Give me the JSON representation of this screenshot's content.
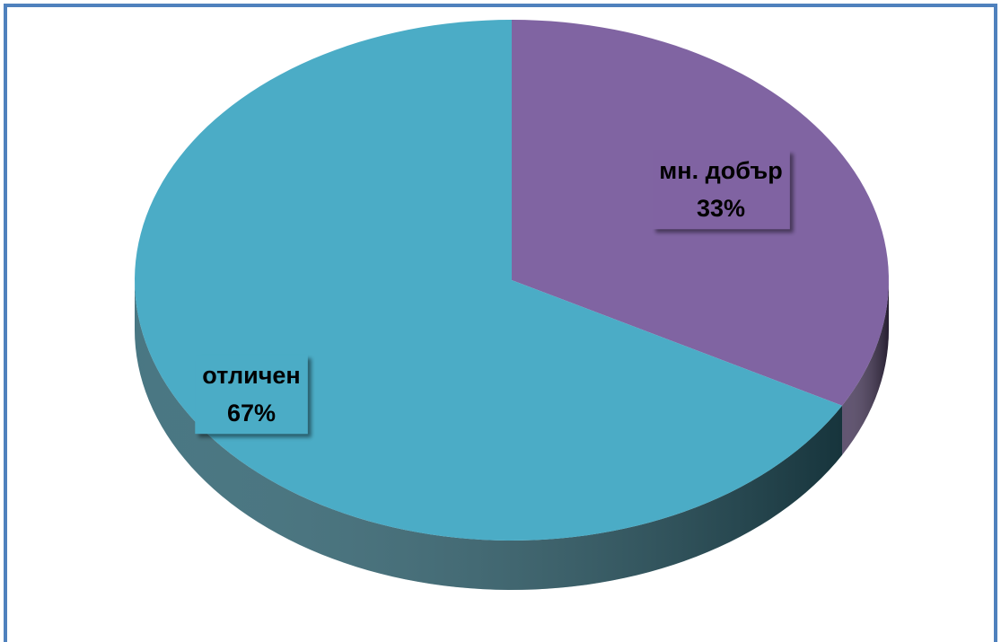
{
  "chart_data": {
    "type": "pie",
    "categories": [
      "мн. добър",
      "отличен"
    ],
    "values": [
      33,
      67
    ],
    "value_labels": [
      "33%",
      "67%"
    ],
    "colors": [
      "#8064a2",
      "#4bacc6"
    ]
  }
}
